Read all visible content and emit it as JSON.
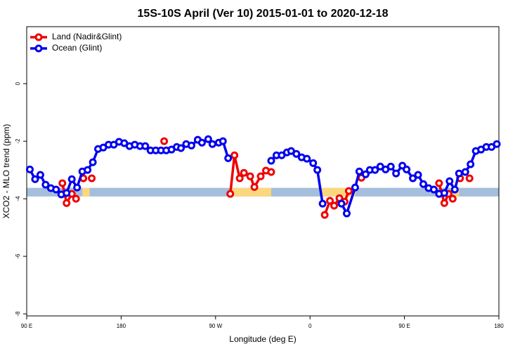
{
  "chart_data": {
    "type": "line",
    "title": "15S-10S April (Ver 10)   2015-01-01 to 2020-12-18",
    "xlabel": "Longitude (deg E)",
    "ylabel": "XCO2 - MLO trend (ppm)",
    "xlim": [
      90,
      540
    ],
    "ylim": [
      -8.07,
      1.98
    ],
    "xticks": [
      {
        "value": 90,
        "label": "90 E"
      },
      180,
      {
        "value": 270,
        "label": "90 W"
      },
      {
        "value": 360,
        "label": "0"
      },
      {
        "value": 450,
        "label": "90 E"
      },
      {
        "value": 540,
        "label": "180"
      }
    ],
    "yticks": [
      0,
      -2,
      -4,
      -6,
      -8
    ],
    "legend": "top-left",
    "band": {
      "y": [
        -3.62,
        -3.92
      ],
      "color": "#a5bedc",
      "land_color": "#fbd780",
      "land_spans": [
        [
          143,
          150
        ],
        [
          284,
          323
        ],
        [
          371,
          403
        ],
        [
          497,
          502
        ]
      ]
    },
    "series": [
      {
        "name": "Land (Nadir&Glint)",
        "color": "#ee0000",
        "x": [
          124,
          128,
          133,
          137,
          null,
          144,
          null,
          152,
          null,
          221,
          null,
          284,
          288,
          293,
          297,
          303,
          307,
          313,
          318,
          323,
          null,
          374,
          379,
          383,
          388,
          393,
          397,
          null,
          409,
          null,
          483,
          488,
          492,
          496,
          null,
          503,
          null,
          512
        ],
        "values": [
          -3.46,
          -4.15,
          -3.83,
          -4.0,
          null,
          -3.29,
          null,
          -3.29,
          null,
          -2.0,
          null,
          -3.83,
          -2.49,
          -3.29,
          -3.1,
          -3.22,
          -3.59,
          -3.22,
          -3.02,
          -3.07,
          null,
          -4.56,
          -4.07,
          -4.24,
          -3.98,
          -4.1,
          -3.73,
          null,
          -3.27,
          null,
          -3.46,
          -4.15,
          -3.83,
          -4.0,
          null,
          -3.29,
          null,
          -3.29
        ]
      },
      {
        "name": "Ocean (Glint)",
        "color": "#0000ee",
        "x": [
          93,
          98,
          103,
          108,
          113,
          118,
          123,
          128,
          133,
          138,
          143,
          148,
          153,
          158,
          163,
          168,
          173,
          178,
          183,
          188,
          193,
          198,
          203,
          208,
          213,
          218,
          223,
          228,
          233,
          237,
          242,
          247,
          253,
          257,
          263,
          267,
          273,
          277,
          282,
          null,
          323,
          328,
          333,
          338,
          342,
          347,
          352,
          357,
          363,
          367,
          372,
          null,
          390,
          395,
          403,
          407,
          413,
          417,
          422,
          427,
          432,
          437,
          442,
          448,
          452,
          458,
          463,
          468,
          473,
          478,
          483,
          488,
          493,
          498,
          502,
          508,
          513,
          518,
          523,
          528,
          533,
          538
        ],
        "values": [
          -2.98,
          -3.32,
          -3.17,
          -3.51,
          -3.63,
          -3.68,
          -3.85,
          -3.8,
          -3.32,
          -3.61,
          -3.05,
          -3.0,
          -2.73,
          -2.27,
          -2.22,
          -2.12,
          -2.12,
          -2.02,
          -2.07,
          -2.17,
          -2.12,
          -2.17,
          -2.17,
          -2.32,
          -2.32,
          -2.32,
          -2.32,
          -2.29,
          -2.2,
          -2.24,
          -2.1,
          -2.15,
          -1.95,
          -2.05,
          -1.93,
          -2.1,
          -2.05,
          -2.0,
          -2.59,
          null,
          -2.68,
          -2.49,
          -2.49,
          -2.39,
          -2.34,
          -2.44,
          -2.56,
          -2.61,
          -2.76,
          -3.0,
          -4.17,
          null,
          -4.17,
          -4.51,
          -3.61,
          -3.05,
          -3.15,
          -3.0,
          -3.0,
          -2.88,
          -2.98,
          -2.88,
          -3.12,
          -2.85,
          -2.98,
          -3.29,
          -3.17,
          -3.49,
          -3.63,
          -3.68,
          -3.83,
          -3.8,
          -3.39,
          -3.68,
          -3.12,
          -3.07,
          -2.8,
          -2.34,
          -2.29,
          -2.2,
          -2.2,
          -2.1
        ]
      }
    ]
  }
}
